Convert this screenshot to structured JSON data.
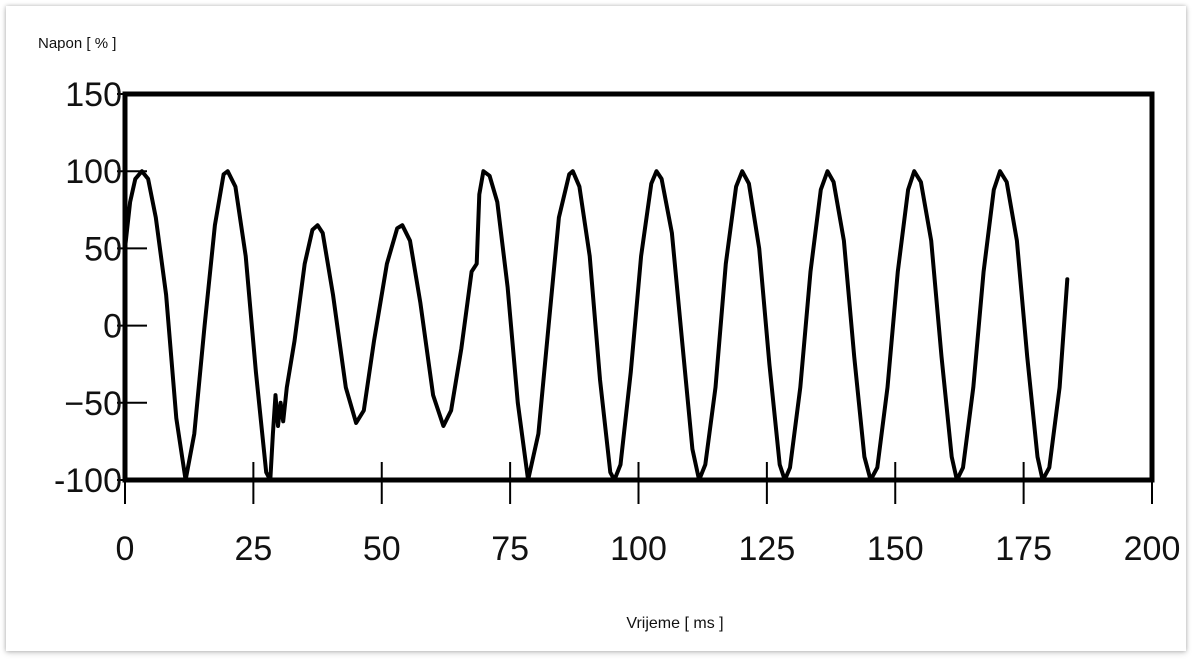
{
  "chart_data": {
    "type": "line",
    "ylabel": "Napon [ % ]",
    "xlabel": "Vrijeme [ ms ]",
    "xlim": [
      0,
      200
    ],
    "ylim": [
      -100,
      150
    ],
    "x_ticks": [
      "0",
      "25",
      "50",
      "75",
      "100",
      "125",
      "150",
      "175",
      "200"
    ],
    "y_ticks": [
      "150",
      "100",
      "50",
      "0",
      "−50",
      "-100"
    ],
    "grid": false,
    "series": [
      {
        "line_color": "#000000",
        "points": [
          [
            0,
            50
          ],
          [
            1,
            80
          ],
          [
            2,
            95
          ],
          [
            3.3,
            100
          ],
          [
            4.5,
            95
          ],
          [
            6,
            70
          ],
          [
            8,
            20
          ],
          [
            10,
            -60
          ],
          [
            11.8,
            -100
          ],
          [
            13.5,
            -70
          ],
          [
            15.5,
            0
          ],
          [
            17.5,
            65
          ],
          [
            19.2,
            98
          ],
          [
            20,
            100
          ],
          [
            21.5,
            90
          ],
          [
            23.5,
            45
          ],
          [
            25.5,
            -30
          ],
          [
            27.5,
            -95
          ],
          [
            28.3,
            -100
          ],
          [
            28.8,
            -70
          ],
          [
            29.3,
            -45
          ],
          [
            29.8,
            -65
          ],
          [
            30.3,
            -50
          ],
          [
            30.8,
            -62
          ],
          [
            31.5,
            -40
          ],
          [
            33,
            -10
          ],
          [
            35,
            40
          ],
          [
            36.5,
            62
          ],
          [
            37.5,
            65
          ],
          [
            38.5,
            60
          ],
          [
            40.5,
            20
          ],
          [
            43,
            -40
          ],
          [
            45,
            -63
          ],
          [
            46.5,
            -55
          ],
          [
            48.5,
            -10
          ],
          [
            51,
            40
          ],
          [
            53,
            63
          ],
          [
            54,
            65
          ],
          [
            55.5,
            55
          ],
          [
            57.5,
            15
          ],
          [
            60,
            -45
          ],
          [
            62,
            -65
          ],
          [
            63.5,
            -55
          ],
          [
            65.5,
            -15
          ],
          [
            67.5,
            35
          ],
          [
            68.5,
            40
          ],
          [
            69,
            85
          ],
          [
            69.8,
            100
          ],
          [
            71,
            97
          ],
          [
            72.5,
            80
          ],
          [
            74.5,
            25
          ],
          [
            76.5,
            -50
          ],
          [
            78.5,
            -100
          ],
          [
            80.5,
            -70
          ],
          [
            82.5,
            0
          ],
          [
            84.5,
            70
          ],
          [
            86.5,
            98
          ],
          [
            87.2,
            100
          ],
          [
            88.5,
            90
          ],
          [
            90.5,
            45
          ],
          [
            92.5,
            -35
          ],
          [
            94.5,
            -95
          ],
          [
            95.3,
            -100
          ],
          [
            96.5,
            -90
          ],
          [
            98.5,
            -30
          ],
          [
            100.5,
            45
          ],
          [
            102.5,
            92
          ],
          [
            103.5,
            100
          ],
          [
            104.5,
            95
          ],
          [
            106.5,
            60
          ],
          [
            108.5,
            -10
          ],
          [
            110.5,
            -80
          ],
          [
            111.8,
            -100
          ],
          [
            113,
            -90
          ],
          [
            115,
            -40
          ],
          [
            117,
            40
          ],
          [
            119,
            90
          ],
          [
            120.2,
            100
          ],
          [
            121.5,
            92
          ],
          [
            123.5,
            50
          ],
          [
            125.5,
            -25
          ],
          [
            127.5,
            -90
          ],
          [
            128.5,
            -100
          ],
          [
            129.5,
            -92
          ],
          [
            131.5,
            -40
          ],
          [
            133.5,
            35
          ],
          [
            135.5,
            88
          ],
          [
            136.8,
            100
          ],
          [
            138,
            93
          ],
          [
            140,
            55
          ],
          [
            142,
            -20
          ],
          [
            144,
            -85
          ],
          [
            145.2,
            -100
          ],
          [
            146.5,
            -92
          ],
          [
            148.5,
            -40
          ],
          [
            150.5,
            35
          ],
          [
            152.5,
            88
          ],
          [
            153.7,
            100
          ],
          [
            155,
            93
          ],
          [
            157,
            55
          ],
          [
            159,
            -20
          ],
          [
            161,
            -85
          ],
          [
            162,
            -100
          ],
          [
            163.2,
            -92
          ],
          [
            165.2,
            -40
          ],
          [
            167.2,
            35
          ],
          [
            169.2,
            88
          ],
          [
            170.4,
            100
          ],
          [
            171.7,
            93
          ],
          [
            173.7,
            55
          ],
          [
            175.7,
            -20
          ],
          [
            177.7,
            -85
          ],
          [
            178.7,
            -100
          ],
          [
            180,
            -92
          ],
          [
            182,
            -40
          ],
          [
            183.5,
            30
          ]
        ]
      }
    ]
  }
}
